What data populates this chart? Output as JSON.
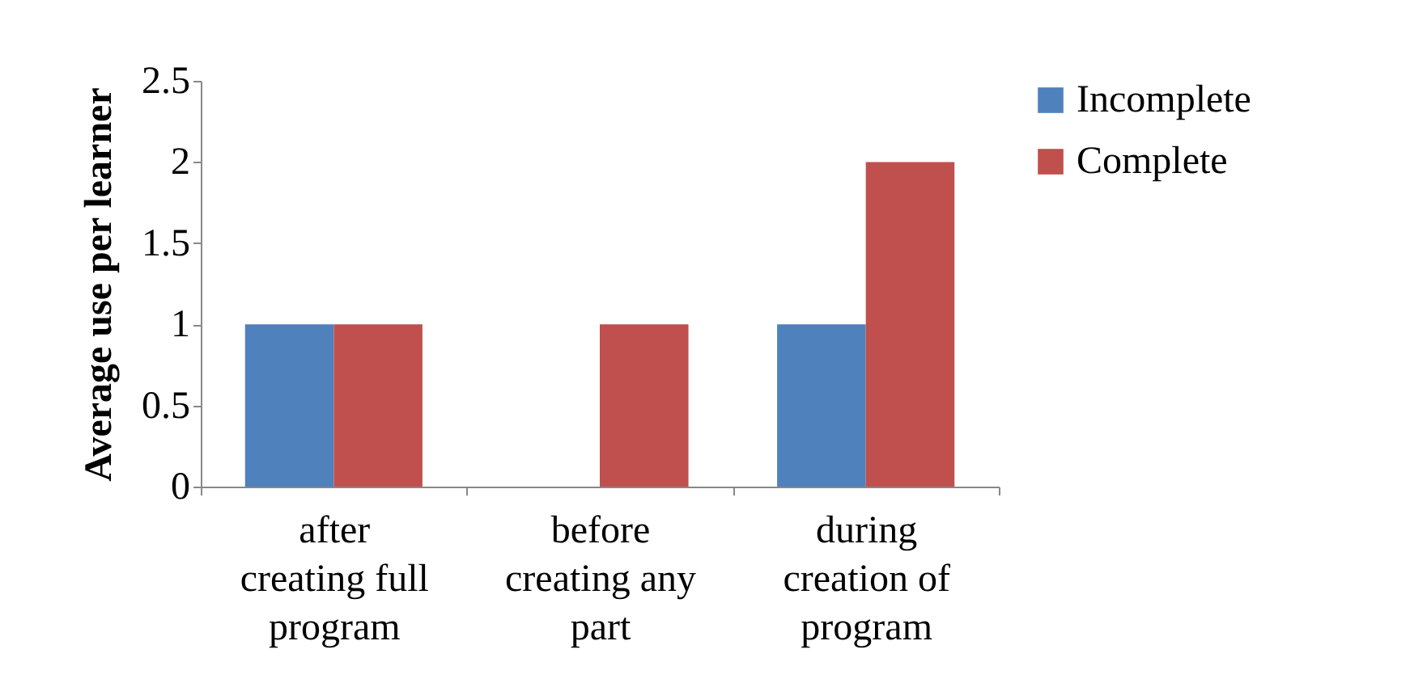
{
  "chart_data": {
    "type": "bar",
    "ylabel": "Average use per learner",
    "categories": [
      "after creating full program",
      "before creating any part",
      "during creation of program"
    ],
    "series": [
      {
        "name": "Incomplete",
        "color": "#4f81bd",
        "values": [
          1,
          0,
          1
        ]
      },
      {
        "name": "Complete",
        "color": "#c0504d",
        "values": [
          1,
          1,
          2
        ]
      }
    ],
    "ylim": [
      0,
      2.5
    ],
    "yticks": [
      0,
      0.5,
      1,
      1.5,
      2,
      2.5
    ],
    "grid": false,
    "legend": "right"
  }
}
